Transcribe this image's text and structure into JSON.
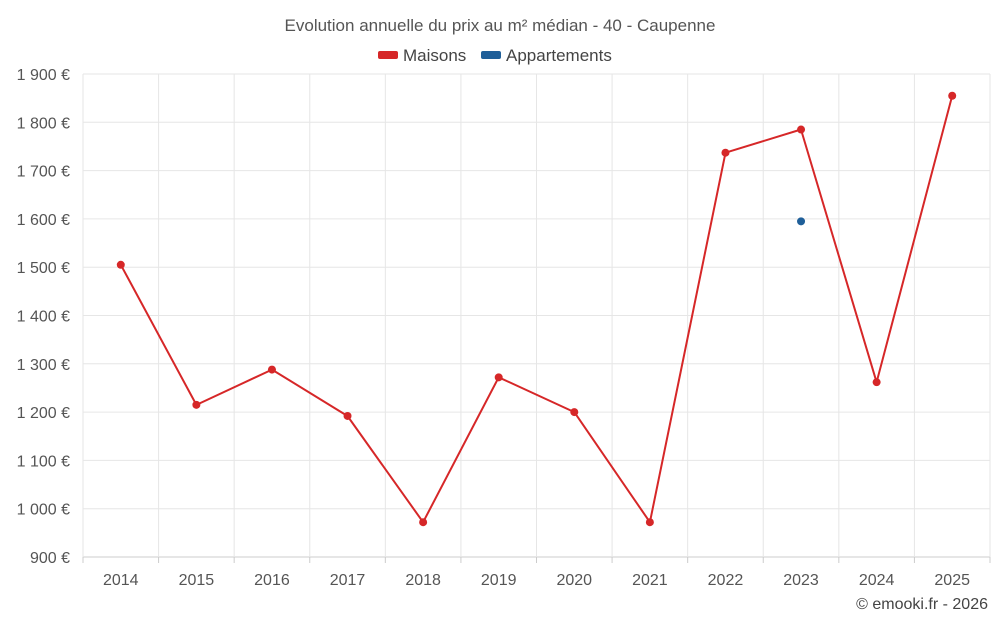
{
  "chart_data": {
    "type": "line",
    "title": "Evolution annuelle du prix au m² médian - 40 - Caupenne",
    "categories": [
      "2014",
      "2015",
      "2016",
      "2017",
      "2018",
      "2019",
      "2020",
      "2021",
      "2022",
      "2023",
      "2024",
      "2025"
    ],
    "series": [
      {
        "name": "Maisons",
        "color": "#d62728",
        "values": [
          1505,
          1215,
          1288,
          1192,
          972,
          1272,
          1200,
          972,
          1737,
          1785,
          1262,
          1855
        ]
      },
      {
        "name": "Appartements",
        "color": "#1f5f99",
        "values": [
          null,
          null,
          null,
          null,
          null,
          null,
          null,
          null,
          null,
          1595,
          null,
          null
        ]
      }
    ],
    "ylim": [
      900,
      1900
    ],
    "yticks": [
      900,
      1000,
      1100,
      1200,
      1300,
      1400,
      1500,
      1600,
      1700,
      1800,
      1900
    ],
    "ytick_labels": [
      "900 €",
      "1 000 €",
      "1 100 €",
      "1 200 €",
      "1 300 €",
      "1 400 €",
      "1 500 €",
      "1 600 €",
      "1 700 €",
      "1 800 €",
      "1 900 €"
    ],
    "legend_position": "top-center",
    "grid": true
  },
  "credit": "© emooki.fr - 2026"
}
